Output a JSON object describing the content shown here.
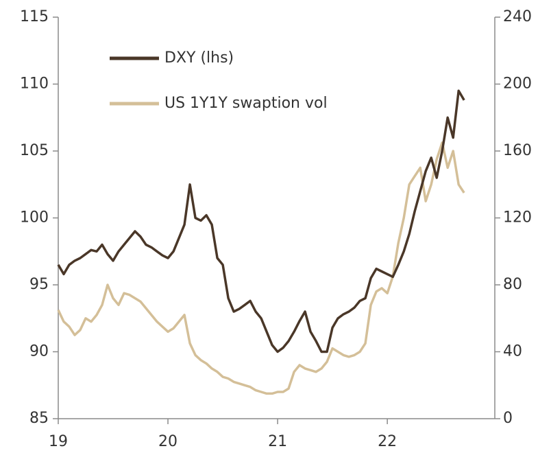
{
  "chart_data": {
    "type": "line",
    "x": [
      19.0,
      19.05,
      19.1,
      19.15,
      19.2,
      19.25,
      19.3,
      19.35,
      19.4,
      19.45,
      19.5,
      19.55,
      19.6,
      19.65,
      19.7,
      19.75,
      19.8,
      19.85,
      19.9,
      19.95,
      20.0,
      20.05,
      20.1,
      20.15,
      20.2,
      20.25,
      20.3,
      20.35,
      20.4,
      20.45,
      20.5,
      20.55,
      20.6,
      20.65,
      20.7,
      20.75,
      20.8,
      20.85,
      20.9,
      20.95,
      21.0,
      21.05,
      21.1,
      21.15,
      21.2,
      21.25,
      21.3,
      21.35,
      21.4,
      21.45,
      21.5,
      21.55,
      21.6,
      21.65,
      21.7,
      21.75,
      21.8,
      21.85,
      21.9,
      21.95,
      22.0,
      22.05,
      22.1,
      22.15,
      22.2,
      22.25,
      22.3,
      22.35,
      22.4,
      22.45,
      22.5,
      22.55,
      22.6,
      22.65,
      22.7
    ],
    "series": [
      {
        "name": "DXY (lhs)",
        "color": "#4a3728",
        "values": [
          96.5,
          95.8,
          96.5,
          96.8,
          97.0,
          97.3,
          97.6,
          97.5,
          98.0,
          97.3,
          96.8,
          97.5,
          98.0,
          98.5,
          99.0,
          98.6,
          98.0,
          97.8,
          97.5,
          97.2,
          97.0,
          97.5,
          98.5,
          99.5,
          102.5,
          100.0,
          99.8,
          100.2,
          99.5,
          97.0,
          96.5,
          94.0,
          93.0,
          93.2,
          93.5,
          93.8,
          93.0,
          92.5,
          91.5,
          90.5,
          90.0,
          90.3,
          90.8,
          91.5,
          92.3,
          93.0,
          91.5,
          90.8,
          90.0,
          90.0,
          91.8,
          92.5,
          92.8,
          93.0,
          93.3,
          93.8,
          94.0,
          95.5,
          96.2,
          96.0,
          95.8,
          95.6,
          96.5,
          97.5,
          98.8,
          100.5,
          102.0,
          103.5,
          104.5,
          103.0,
          105.0,
          107.5,
          106.0,
          109.5,
          108.8
        ]
      },
      {
        "name": "US 1Y1Y swaption vol",
        "color": "#d4bf98",
        "axis": "y2",
        "values": [
          65,
          58,
          55,
          50,
          53,
          60,
          58,
          62,
          68,
          80,
          72,
          68,
          75,
          74,
          72,
          70,
          66,
          62,
          58,
          55,
          52,
          54,
          58,
          62,
          45,
          38,
          35,
          33,
          30,
          28,
          25,
          24,
          22,
          21,
          20,
          19,
          17,
          16,
          15,
          15,
          16,
          16,
          18,
          28,
          32,
          30,
          29,
          28,
          30,
          34,
          42,
          40,
          38,
          37,
          38,
          40,
          45,
          68,
          76,
          78,
          75,
          85,
          105,
          120,
          140,
          145,
          150,
          130,
          140,
          155,
          165,
          150,
          160,
          140,
          135
        ]
      }
    ],
    "xlim": [
      19,
      22.98
    ],
    "xticks": [
      19,
      20,
      21,
      22
    ],
    "ylim": [
      85,
      115
    ],
    "yticks": [
      85,
      90,
      95,
      100,
      105,
      110,
      115
    ],
    "y2lim": [
      0,
      240
    ],
    "y2ticks": [
      0,
      40,
      80,
      120,
      160,
      200,
      240
    ],
    "legend": "upper left"
  }
}
